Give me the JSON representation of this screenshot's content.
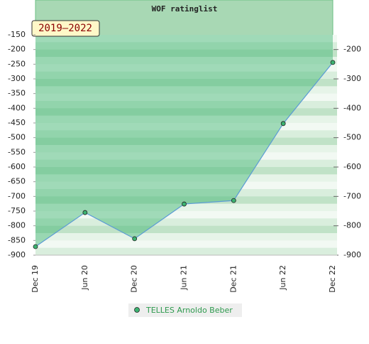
{
  "chart_data": {
    "type": "area",
    "title": "WOF ratinglist",
    "period_label": "2019–2022",
    "categories": [
      "Dec 19",
      "Jun 20",
      "Dec 20",
      "Jun 21",
      "Dec 21",
      "Jun 22",
      "Dec 22"
    ],
    "series": [
      {
        "name": "TELLES Arnoldo Beber",
        "color": "#5b9bd5",
        "marker_color": "#3cb371",
        "values": [
          -871,
          -755,
          -844,
          -726,
          -714,
          -452,
          -244
        ]
      }
    ],
    "fill": "above",
    "fill_color": "#3cb371",
    "ylim": [
      -900,
      -150
    ],
    "yticks": [
      -150,
      -200,
      -250,
      -300,
      -350,
      -400,
      -450,
      -500,
      -550,
      -600,
      -650,
      -700,
      -750,
      -800,
      -850,
      -900
    ],
    "y2lim": [
      -900,
      -150
    ],
    "y2ticks": [
      -200,
      -300,
      -400,
      -500,
      -600,
      -700,
      -800,
      -900
    ]
  }
}
